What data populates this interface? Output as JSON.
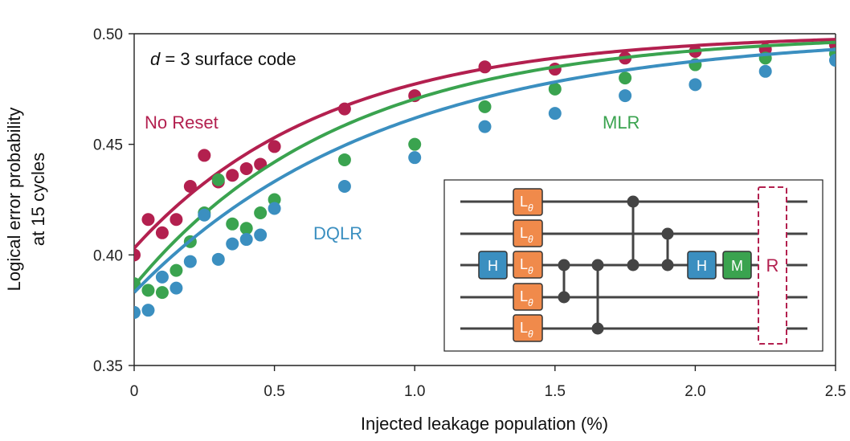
{
  "chart_data": {
    "type": "scatter",
    "title": "",
    "annotation": {
      "prefix": "d",
      "text": " = 3 surface code"
    },
    "xlabel": "Injected leakage population (%)",
    "ylabel_lines": [
      "Logical error probability",
      "at 15 cycles"
    ],
    "xlim": [
      0,
      2.5
    ],
    "ylim": [
      0.35,
      0.5
    ],
    "xticks": [
      0,
      0.5,
      1.0,
      1.5,
      2.0,
      2.5
    ],
    "xtick_labels": [
      "0",
      "0.5",
      "1.0",
      "1.5",
      "2.0",
      "2.5"
    ],
    "yticks": [
      0.35,
      0.4,
      0.45,
      0.5
    ],
    "ytick_labels": [
      "0.35",
      "0.40",
      "0.45",
      "0.50"
    ],
    "series": [
      {
        "name": "No Reset",
        "color": "#b3204f",
        "points": [
          [
            0,
            0.4
          ],
          [
            0.05,
            0.416
          ],
          [
            0.1,
            0.41
          ],
          [
            0.15,
            0.416
          ],
          [
            0.2,
            0.431
          ],
          [
            0.25,
            0.445
          ],
          [
            0.3,
            0.433
          ],
          [
            0.35,
            0.436
          ],
          [
            0.4,
            0.439
          ],
          [
            0.45,
            0.441
          ],
          [
            0.5,
            0.449
          ],
          [
            0.75,
            0.466
          ],
          [
            1.0,
            0.472
          ],
          [
            1.25,
            0.485
          ],
          [
            1.5,
            0.484
          ],
          [
            1.75,
            0.489
          ],
          [
            2.0,
            0.492
          ],
          [
            2.25,
            0.493
          ],
          [
            2.5,
            0.495
          ]
        ],
        "fit": {
          "a": 0.5,
          "b": 0.097,
          "k": 1.45
        }
      },
      {
        "name": "MLR",
        "color": "#3aa34f",
        "points": [
          [
            0,
            0.387
          ],
          [
            0.05,
            0.384
          ],
          [
            0.1,
            0.383
          ],
          [
            0.15,
            0.393
          ],
          [
            0.2,
            0.406
          ],
          [
            0.25,
            0.419
          ],
          [
            0.3,
            0.434
          ],
          [
            0.35,
            0.414
          ],
          [
            0.4,
            0.412
          ],
          [
            0.45,
            0.419
          ],
          [
            0.5,
            0.425
          ],
          [
            0.75,
            0.443
          ],
          [
            1.0,
            0.45
          ],
          [
            1.25,
            0.467
          ],
          [
            1.5,
            0.475
          ],
          [
            1.75,
            0.48
          ],
          [
            2.0,
            0.486
          ],
          [
            2.25,
            0.489
          ],
          [
            2.5,
            0.491
          ]
        ],
        "fit": {
          "a": 0.5,
          "b": 0.114,
          "k": 1.35
        }
      },
      {
        "name": "DQLR",
        "color": "#3b8fc0",
        "points": [
          [
            0,
            0.374
          ],
          [
            0.05,
            0.375
          ],
          [
            0.1,
            0.39
          ],
          [
            0.15,
            0.385
          ],
          [
            0.2,
            0.397
          ],
          [
            0.25,
            0.418
          ],
          [
            0.3,
            0.398
          ],
          [
            0.35,
            0.405
          ],
          [
            0.4,
            0.407
          ],
          [
            0.45,
            0.409
          ],
          [
            0.5,
            0.421
          ],
          [
            0.75,
            0.431
          ],
          [
            1.0,
            0.444
          ],
          [
            1.25,
            0.458
          ],
          [
            1.5,
            0.464
          ],
          [
            1.75,
            0.472
          ],
          [
            2.0,
            0.477
          ],
          [
            2.25,
            0.483
          ],
          [
            2.5,
            0.488
          ]
        ],
        "fit": {
          "a": 0.5,
          "b": 0.117,
          "k": 1.12
        }
      }
    ],
    "inset_circuit": {
      "gates": {
        "hadamard": "H",
        "measure": "M",
        "reset": "R",
        "leakage": "L",
        "leakage_sub": "θ"
      }
    }
  }
}
